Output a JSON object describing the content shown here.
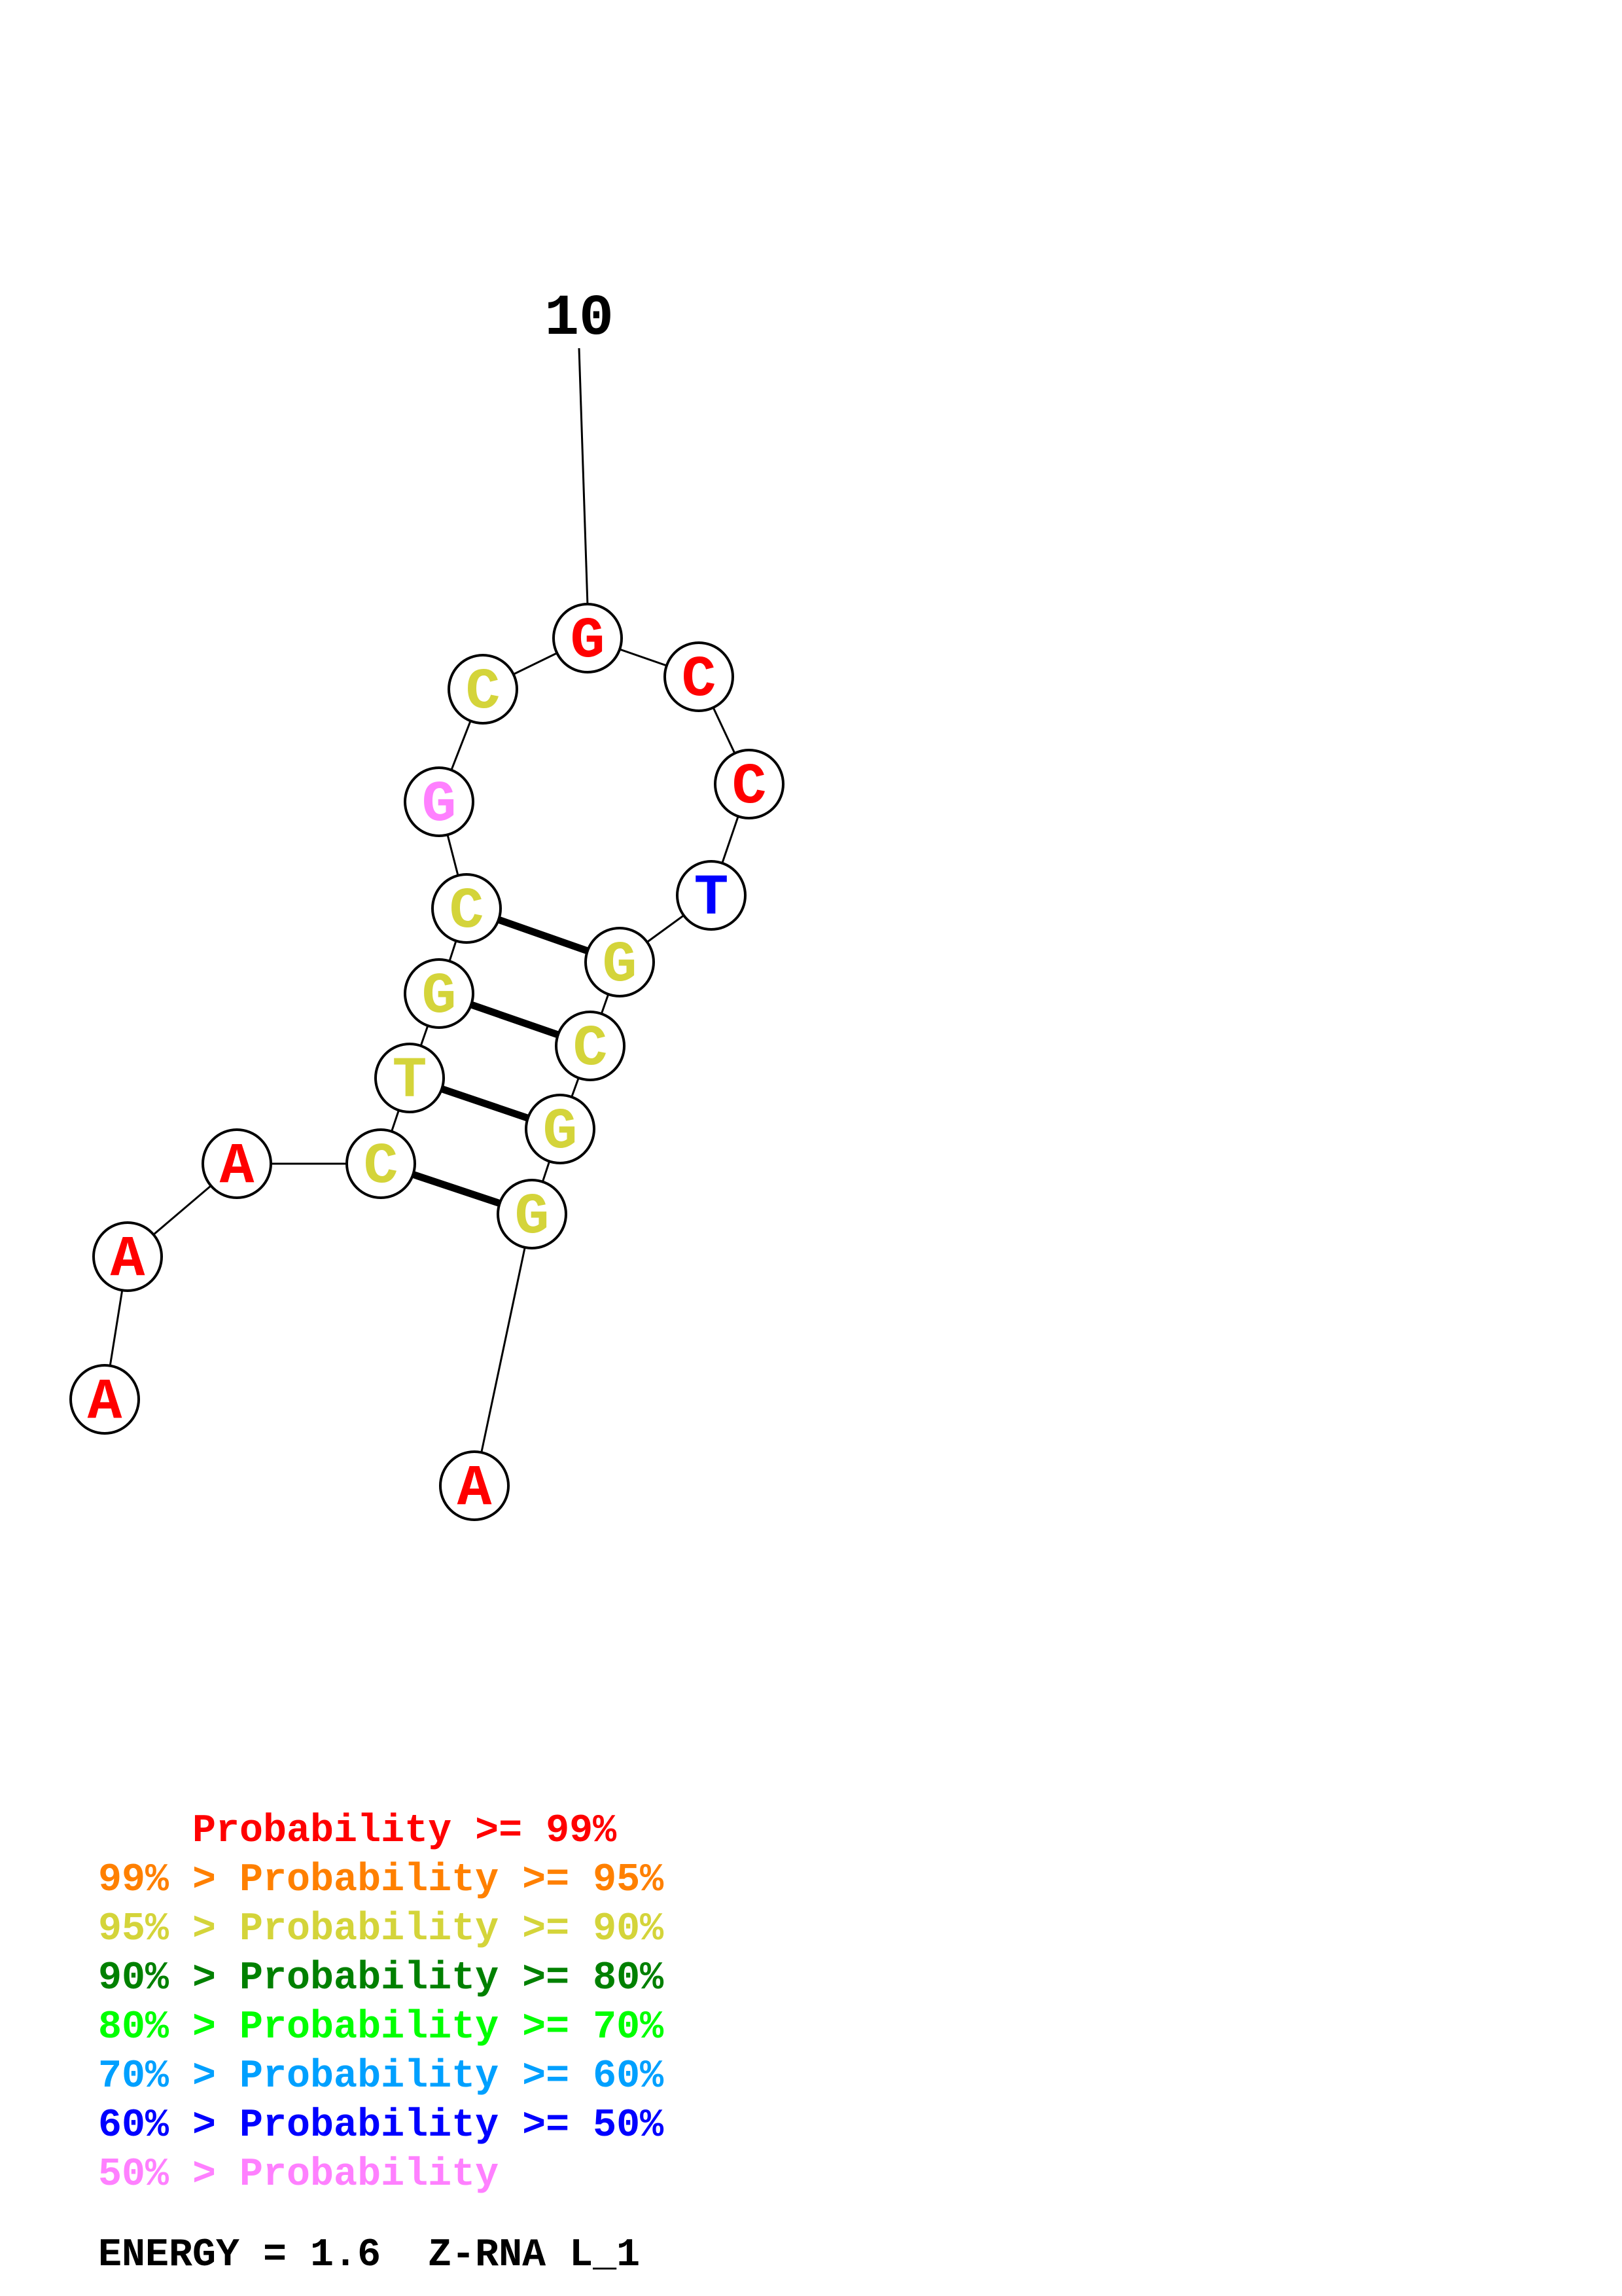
{
  "diagram": {
    "type": "rna-secondary-structure",
    "position_label": "10",
    "nucleotides": [
      {
        "id": 1,
        "letter": "A",
        "color": "#ff0000"
      },
      {
        "id": 2,
        "letter": "A",
        "color": "#ff0000"
      },
      {
        "id": 3,
        "letter": "A",
        "color": "#ff0000"
      },
      {
        "id": 4,
        "letter": "C",
        "color": "#d4d43a"
      },
      {
        "id": 5,
        "letter": "T",
        "color": "#d4d43a"
      },
      {
        "id": 6,
        "letter": "G",
        "color": "#d4d43a"
      },
      {
        "id": 7,
        "letter": "C",
        "color": "#d4d43a"
      },
      {
        "id": 8,
        "letter": "G",
        "color": "#ff80ff"
      },
      {
        "id": 9,
        "letter": "C",
        "color": "#d4d43a"
      },
      {
        "id": 10,
        "letter": "G",
        "color": "#ff0000"
      },
      {
        "id": 11,
        "letter": "C",
        "color": "#ff0000"
      },
      {
        "id": 12,
        "letter": "C",
        "color": "#ff0000"
      },
      {
        "id": 13,
        "letter": "T",
        "color": "#0000ff"
      },
      {
        "id": 14,
        "letter": "G",
        "color": "#d4d43a"
      },
      {
        "id": 15,
        "letter": "C",
        "color": "#d4d43a"
      },
      {
        "id": 16,
        "letter": "G",
        "color": "#d4d43a"
      },
      {
        "id": 17,
        "letter": "G",
        "color": "#d4d43a"
      },
      {
        "id": 18,
        "letter": "A",
        "color": "#ff0000"
      }
    ],
    "base_pairs": [
      [
        4,
        17
      ],
      [
        5,
        16
      ],
      [
        6,
        15
      ],
      [
        7,
        14
      ]
    ]
  },
  "legend": [
    {
      "text": "    Probability >= 99%",
      "color": "#ff0000"
    },
    {
      "text": "99% > Probability >= 95%",
      "color": "#ff8000"
    },
    {
      "text": "95% > Probability >= 90%",
      "color": "#d4d43a"
    },
    {
      "text": "90% > Probability >= 80%",
      "color": "#008000"
    },
    {
      "text": "80% > Probability >= 70%",
      "color": "#00ff00"
    },
    {
      "text": "70% > Probability >= 60%",
      "color": "#00a0ff"
    },
    {
      "text": "60% > Probability >= 50%",
      "color": "#0000ff"
    },
    {
      "text": "50% > Probability",
      "color": "#ff80ff"
    }
  ],
  "energy_label": "ENERGY = 1.6  Z-RNA L_1"
}
